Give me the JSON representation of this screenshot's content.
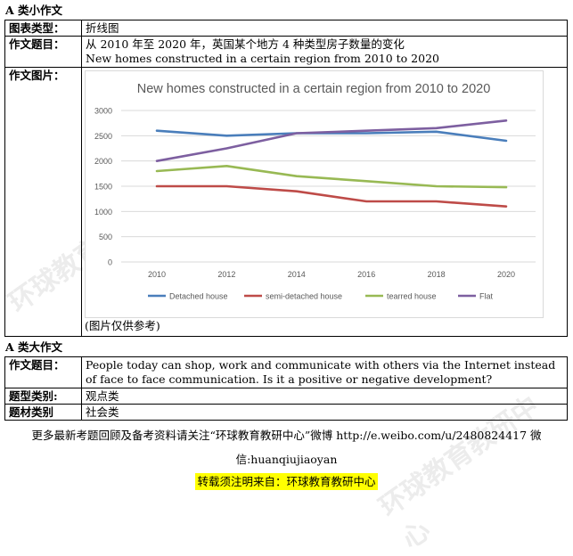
{
  "section_a_small": {
    "title": "A 类小作文",
    "rows": [
      {
        "label": "图表类型：",
        "value": "折线图"
      },
      {
        "label": "作文题目：",
        "value": "从 2010 年至 2020 年，英国某个地方 4 种类型房子数量的变化",
        "value2": "New homes constructed in a certain region from 2010 to 2020"
      },
      {
        "label": "作文图片：",
        "note": "(图片仅供参考)"
      }
    ]
  },
  "chart_data": {
    "type": "line",
    "title": "New homes constructed in a certain region from 2010 to 2020",
    "x": [
      "2010",
      "2012",
      "2014",
      "2016",
      "2018",
      "2020"
    ],
    "y_ticks": [
      "0",
      "500",
      "1000",
      "1500",
      "2000",
      "2500",
      "3000"
    ],
    "ylim": [
      0,
      3000
    ],
    "grid": true,
    "legend_position": "bottom",
    "series": [
      {
        "name": "Detached house",
        "color": "#4a7ebb",
        "values": [
          2600,
          2500,
          2550,
          2550,
          2580,
          2400
        ]
      },
      {
        "name": "semi-detached house",
        "color": "#be4b48",
        "values": [
          1500,
          1500,
          1400,
          1200,
          1200,
          1100
        ]
      },
      {
        "name": "tearred house",
        "color": "#98b954",
        "values": [
          1800,
          1900,
          1700,
          1600,
          1500,
          1480
        ]
      },
      {
        "name": "Flat",
        "color": "#7d5fa0",
        "values": [
          2000,
          2250,
          2550,
          2600,
          2650,
          2800
        ]
      }
    ]
  },
  "section_a_big": {
    "title": "A 类大作文",
    "rows": [
      {
        "label": "作文题目：",
        "value": "People today can shop, work and communicate with others via the Internet instead of face to face communication. Is it a positive or negative development?"
      },
      {
        "label": "题型类别:",
        "value": "观点类"
      },
      {
        "label": "题材类别",
        "value": "社会类"
      }
    ]
  },
  "footer": {
    "line1": "更多最新考题回顾及备考资料请关注“环球教育教研中心”微博 http://e.weibo.com/u/2480824417  微",
    "line2": "信:huanqiujiaoyan",
    "line3": "转载须注明来自：环球教育教研中心"
  },
  "watermark": {
    "text": "环球教育教研中心"
  }
}
